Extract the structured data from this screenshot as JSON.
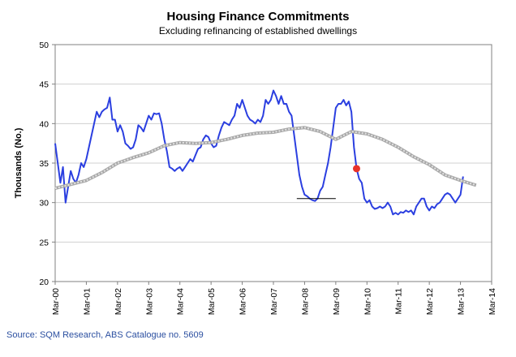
{
  "chart_data": {
    "type": "line",
    "title": "Housing Finance Commitments",
    "subtitle": "Excluding refinancing of established dwellings",
    "ylabel": "Thousands (No.)",
    "xlabel": "",
    "ylim": [
      20,
      50
    ],
    "yticks": [
      20,
      25,
      30,
      35,
      40,
      45,
      50
    ],
    "xlim": [
      "2000-03",
      "2014-03"
    ],
    "xticks": [
      "Mar-00",
      "Mar-01",
      "Mar-02",
      "Mar-03",
      "Mar-04",
      "Mar-05",
      "Mar-06",
      "Mar-07",
      "Mar-08",
      "Mar-09",
      "Mar-10",
      "Mar-11",
      "Mar-12",
      "Mar-13",
      "Mar-14"
    ],
    "grid": {
      "horizontal": true,
      "vertical": false
    },
    "legend": "none",
    "series": [
      {
        "role": "monthly",
        "color": "#2b3fe0",
        "points": [
          [
            "2000-03",
            37.5
          ],
          [
            "2000-04",
            35.0
          ],
          [
            "2000-05",
            32.5
          ],
          [
            "2000-06",
            34.5
          ],
          [
            "2000-07",
            30.0
          ],
          [
            "2000-08",
            32.0
          ],
          [
            "2000-09",
            34.0
          ],
          [
            "2000-10",
            33.0
          ],
          [
            "2000-11",
            32.5
          ],
          [
            "2000-12",
            33.5
          ],
          [
            "2001-01",
            35.0
          ],
          [
            "2001-02",
            34.5
          ],
          [
            "2001-03",
            35.5
          ],
          [
            "2001-04",
            37.0
          ],
          [
            "2001-05",
            38.5
          ],
          [
            "2001-06",
            40.0
          ],
          [
            "2001-07",
            41.5
          ],
          [
            "2001-08",
            40.8
          ],
          [
            "2001-09",
            41.5
          ],
          [
            "2001-10",
            41.8
          ],
          [
            "2001-11",
            42.0
          ],
          [
            "2001-12",
            43.3
          ],
          [
            "2002-01",
            40.5
          ],
          [
            "2002-02",
            40.5
          ],
          [
            "2002-03",
            39.0
          ],
          [
            "2002-04",
            39.8
          ],
          [
            "2002-05",
            39.0
          ],
          [
            "2002-06",
            37.5
          ],
          [
            "2002-07",
            37.2
          ],
          [
            "2002-08",
            36.8
          ],
          [
            "2002-09",
            37.0
          ],
          [
            "2002-10",
            38.0
          ],
          [
            "2002-11",
            39.8
          ],
          [
            "2002-12",
            39.5
          ],
          [
            "2003-01",
            39.0
          ],
          [
            "2003-02",
            40.0
          ],
          [
            "2003-03",
            41.0
          ],
          [
            "2003-04",
            40.5
          ],
          [
            "2003-05",
            41.3
          ],
          [
            "2003-06",
            41.2
          ],
          [
            "2003-07",
            41.3
          ],
          [
            "2003-08",
            40.0
          ],
          [
            "2003-09",
            38.0
          ],
          [
            "2003-10",
            36.5
          ],
          [
            "2003-11",
            34.5
          ],
          [
            "2003-12",
            34.3
          ],
          [
            "2004-01",
            34.0
          ],
          [
            "2004-02",
            34.3
          ],
          [
            "2004-03",
            34.5
          ],
          [
            "2004-04",
            34.0
          ],
          [
            "2004-05",
            34.5
          ],
          [
            "2004-06",
            35.0
          ],
          [
            "2004-07",
            35.5
          ],
          [
            "2004-08",
            35.2
          ],
          [
            "2004-09",
            36.0
          ],
          [
            "2004-10",
            36.8
          ],
          [
            "2004-11",
            37.0
          ],
          [
            "2004-12",
            38.0
          ],
          [
            "2005-01",
            38.5
          ],
          [
            "2005-02",
            38.3
          ],
          [
            "2005-03",
            37.5
          ],
          [
            "2005-04",
            37.0
          ],
          [
            "2005-05",
            37.2
          ],
          [
            "2005-06",
            38.5
          ],
          [
            "2005-07",
            39.5
          ],
          [
            "2005-08",
            40.2
          ],
          [
            "2005-09",
            40.0
          ],
          [
            "2005-10",
            39.8
          ],
          [
            "2005-11",
            40.5
          ],
          [
            "2005-12",
            41.0
          ],
          [
            "2006-01",
            42.5
          ],
          [
            "2006-02",
            42.0
          ],
          [
            "2006-03",
            43.0
          ],
          [
            "2006-04",
            42.0
          ],
          [
            "2006-05",
            41.0
          ],
          [
            "2006-06",
            40.5
          ],
          [
            "2006-07",
            40.3
          ],
          [
            "2006-08",
            40.0
          ],
          [
            "2006-09",
            40.5
          ],
          [
            "2006-10",
            40.2
          ],
          [
            "2006-11",
            41.0
          ],
          [
            "2006-12",
            43.0
          ],
          [
            "2007-01",
            42.5
          ],
          [
            "2007-02",
            43.0
          ],
          [
            "2007-03",
            44.2
          ],
          [
            "2007-04",
            43.5
          ],
          [
            "2007-05",
            42.5
          ],
          [
            "2007-06",
            43.5
          ],
          [
            "2007-07",
            42.5
          ],
          [
            "2007-08",
            42.5
          ],
          [
            "2007-09",
            41.5
          ],
          [
            "2007-10",
            41.0
          ],
          [
            "2007-11",
            38.5
          ],
          [
            "2007-12",
            36.0
          ],
          [
            "2008-01",
            33.5
          ],
          [
            "2008-02",
            32.0
          ],
          [
            "2008-03",
            31.0
          ],
          [
            "2008-04",
            30.8
          ],
          [
            "2008-05",
            30.5
          ],
          [
            "2008-06",
            30.3
          ],
          [
            "2008-07",
            30.2
          ],
          [
            "2008-08",
            30.5
          ],
          [
            "2008-09",
            31.5
          ],
          [
            "2008-10",
            32.0
          ],
          [
            "2008-11",
            33.5
          ],
          [
            "2008-12",
            35.0
          ],
          [
            "2009-01",
            37.0
          ],
          [
            "2009-02",
            39.5
          ],
          [
            "2009-03",
            42.0
          ],
          [
            "2009-04",
            42.5
          ],
          [
            "2009-05",
            42.5
          ],
          [
            "2009-06",
            43.0
          ],
          [
            "2009-07",
            42.3
          ],
          [
            "2009-08",
            42.8
          ],
          [
            "2009-09",
            41.5
          ],
          [
            "2009-10",
            37.0
          ],
          [
            "2009-11",
            34.3
          ],
          [
            "2009-12",
            33.0
          ],
          [
            "2010-01",
            32.5
          ],
          [
            "2010-02",
            30.5
          ],
          [
            "2010-03",
            30.0
          ],
          [
            "2010-04",
            30.3
          ],
          [
            "2010-05",
            29.5
          ],
          [
            "2010-06",
            29.2
          ],
          [
            "2010-07",
            29.3
          ],
          [
            "2010-08",
            29.5
          ],
          [
            "2010-09",
            29.3
          ],
          [
            "2010-10",
            29.5
          ],
          [
            "2010-11",
            30.0
          ],
          [
            "2010-12",
            29.5
          ],
          [
            "2011-01",
            28.5
          ],
          [
            "2011-02",
            28.7
          ],
          [
            "2011-03",
            28.5
          ],
          [
            "2011-04",
            28.8
          ],
          [
            "2011-05",
            28.7
          ],
          [
            "2011-06",
            29.0
          ],
          [
            "2011-07",
            28.8
          ],
          [
            "2011-08",
            29.0
          ],
          [
            "2011-09",
            28.5
          ],
          [
            "2011-10",
            29.5
          ],
          [
            "2011-11",
            30.0
          ],
          [
            "2011-12",
            30.5
          ],
          [
            "2012-01",
            30.5
          ],
          [
            "2012-02",
            29.5
          ],
          [
            "2012-03",
            29.0
          ],
          [
            "2012-04",
            29.5
          ],
          [
            "2012-05",
            29.3
          ],
          [
            "2012-06",
            29.8
          ],
          [
            "2012-07",
            30.0
          ],
          [
            "2012-08",
            30.5
          ],
          [
            "2012-09",
            31.0
          ],
          [
            "2012-10",
            31.2
          ],
          [
            "2012-11",
            31.0
          ],
          [
            "2012-12",
            30.5
          ],
          [
            "2013-01",
            30.0
          ],
          [
            "2013-02",
            30.5
          ],
          [
            "2013-03",
            31.0
          ],
          [
            "2013-04",
            33.3
          ]
        ]
      },
      {
        "role": "trend",
        "color": "#a8a8a8",
        "points": [
          [
            "2000-03",
            31.8
          ],
          [
            "2000-09",
            32.3
          ],
          [
            "2001-03",
            32.8
          ],
          [
            "2001-09",
            33.8
          ],
          [
            "2002-03",
            35.0
          ],
          [
            "2002-09",
            35.7
          ],
          [
            "2003-03",
            36.3
          ],
          [
            "2003-09",
            37.2
          ],
          [
            "2004-03",
            37.6
          ],
          [
            "2004-09",
            37.5
          ],
          [
            "2005-03",
            37.6
          ],
          [
            "2005-09",
            38.0
          ],
          [
            "2006-03",
            38.5
          ],
          [
            "2006-09",
            38.8
          ],
          [
            "2007-03",
            38.9
          ],
          [
            "2007-09",
            39.3
          ],
          [
            "2008-03",
            39.5
          ],
          [
            "2008-09",
            39.0
          ],
          [
            "2009-03",
            38.0
          ],
          [
            "2009-09",
            39.0
          ],
          [
            "2010-03",
            38.7
          ],
          [
            "2010-09",
            38.0
          ],
          [
            "2011-03",
            37.0
          ],
          [
            "2011-09",
            35.8
          ],
          [
            "2012-03",
            34.8
          ],
          [
            "2012-09",
            33.5
          ],
          [
            "2013-03",
            32.8
          ],
          [
            "2013-09",
            32.2
          ]
        ]
      }
    ],
    "annotations": [
      {
        "type": "hline",
        "from": "2007-12",
        "to": "2009-03",
        "y": 30.5,
        "color": "#000000"
      },
      {
        "type": "marker",
        "x": "2009-11",
        "y": 34.3,
        "color": "#e8332a"
      }
    ]
  },
  "source": "Source: SQM Research, ABS Catalogue no. 5609"
}
